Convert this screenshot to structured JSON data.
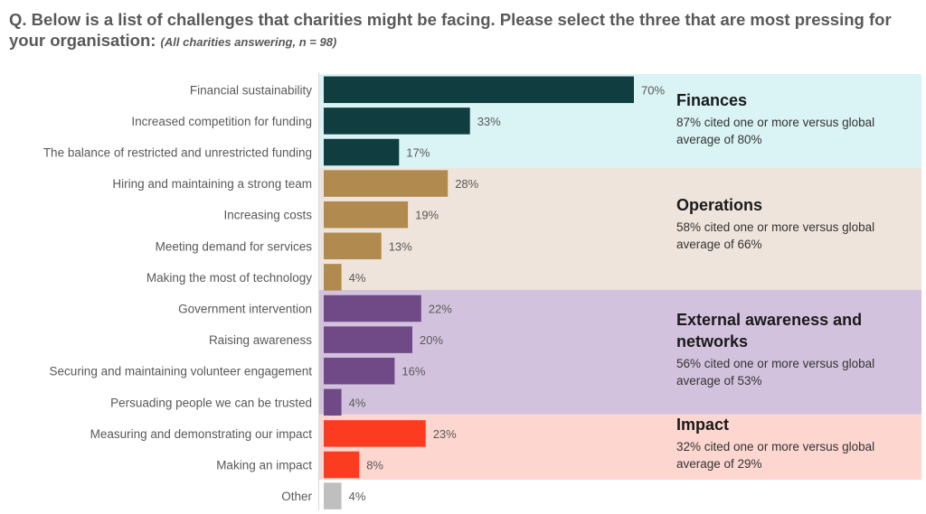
{
  "question": {
    "text": "Q. Below is a list of challenges that charities might be facing. Please select the three that are most pressing for your organisation:",
    "note": "(All charities answering, n = 98)"
  },
  "colors": {
    "finances_bar": "#0f3d40",
    "finances_band": "#daf3f5",
    "operations_bar": "#b08a4e",
    "operations_band": "#efe4db",
    "external_bar": "#6f4a87",
    "external_band": "#d3c2dd",
    "impact_bar": "#fc3c20",
    "impact_band": "#fdd6d0",
    "other_bar": "#bfbfbf"
  },
  "chart_data": {
    "type": "bar",
    "orientation": "horizontal",
    "value_unit": "%",
    "xlim": [
      0,
      100
    ],
    "grid": false,
    "categories": [
      "Financial sustainability",
      "Increased competition for funding",
      "The balance of restricted and unrestricted funding",
      "Hiring and maintaining a strong team",
      "Increasing costs",
      "Meeting demand for services",
      "Making the most of technology",
      "Government intervention",
      "Raising awareness",
      "Securing and maintaining volunteer engagement",
      "Persuading people we can be trusted",
      "Measuring and demonstrating our impact",
      "Making an impact",
      "Other"
    ],
    "values": [
      70,
      33,
      17,
      28,
      19,
      13,
      4,
      22,
      20,
      16,
      4,
      23,
      8,
      4
    ],
    "value_labels": [
      "70%",
      "33%",
      "17%",
      "28%",
      "19%",
      "13%",
      "4%",
      "22%",
      "20%",
      "16%",
      "4%",
      "23%",
      "8%",
      "4%"
    ],
    "groups": [
      {
        "key": "finances",
        "title_lines": [
          "Finances"
        ],
        "note_lines": [
          "87% cited one or more versus global",
          "average of 80%"
        ],
        "start": 0,
        "end": 2
      },
      {
        "key": "operations",
        "title_lines": [
          "Operations"
        ],
        "note_lines": [
          "58% cited one or more versus global",
          "average of 66%"
        ],
        "start": 3,
        "end": 6
      },
      {
        "key": "external",
        "title_lines": [
          "External awareness and",
          "networks"
        ],
        "note_lines": [
          "56% cited one or more versus global",
          "average of 53%"
        ],
        "start": 7,
        "end": 10
      },
      {
        "key": "impact",
        "title_lines": [
          "Impact"
        ],
        "note_lines": [
          "32% cited one or more versus global",
          "average of 29%"
        ],
        "start": 11,
        "end": 12
      },
      {
        "key": "other",
        "title_lines": [],
        "note_lines": [],
        "start": 13,
        "end": 13
      }
    ]
  }
}
